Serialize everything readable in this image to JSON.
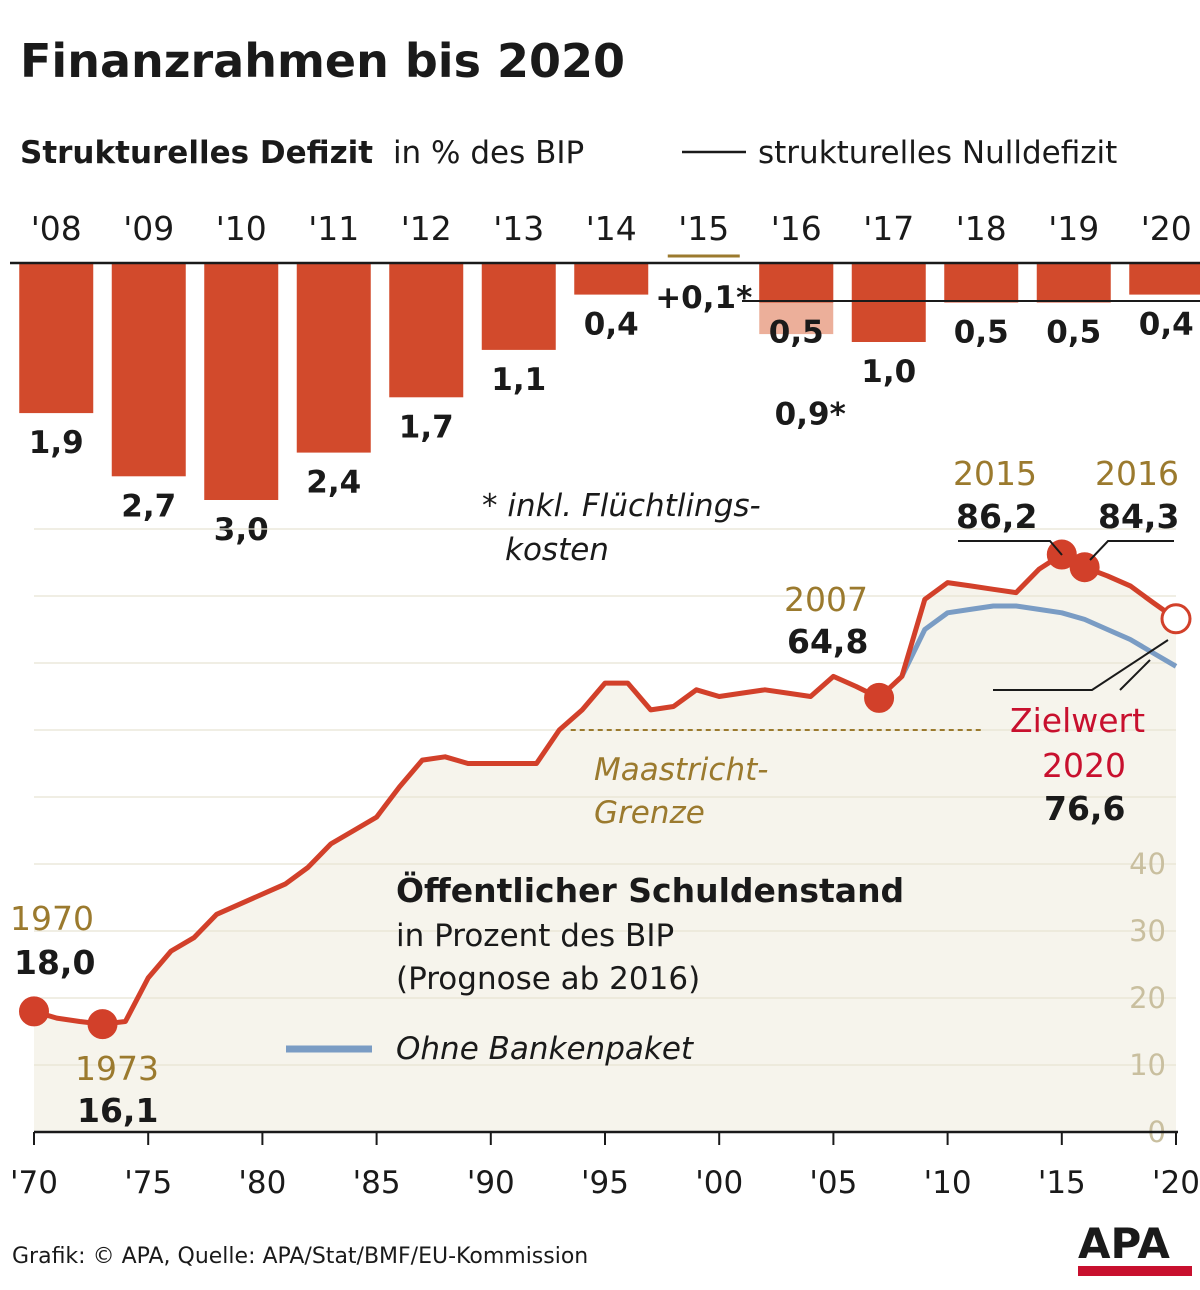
{
  "title": "Finanzrahmen bis 2020",
  "colors": {
    "bar": "#d24a2c",
    "bar_light": "#ecaf9a",
    "debt_line": "#d2402a",
    "no_bank_line": "#7a9cc4",
    "gold": "#9b7a2e",
    "area_fill": "#f6f4ec",
    "red_text": "#c8102e"
  },
  "deficit": {
    "subtitle_bold": "Strukturelles Defizit",
    "subtitle_rest": "in % des BIP",
    "legend_label": "strukturelles Nulldefizit",
    "footnote_line1": "* inkl. Flüchtlings-",
    "footnote_line2": "kosten"
  },
  "debt": {
    "legend_title": "Öffentlicher Schuldenstand",
    "legend_line2": "in Prozent des BIP",
    "legend_line3": "(Prognose ab 2016)",
    "legend_no_bank": "Ohne Bankenpaket",
    "maastricht_line1": "Maastricht-",
    "maastricht_line2": "Grenze",
    "ann_1970_year": "1970",
    "ann_1970_value": "18,0",
    "ann_1973_year": "1973",
    "ann_1973_value": "16,1",
    "ann_2007_year": "2007",
    "ann_2007_value": "64,8",
    "ann_2015_year": "2015",
    "ann_2015_value": "86,2",
    "ann_2016_year": "2016",
    "ann_2016_value": "84,3",
    "ann_2020_label1": "Zielwert",
    "ann_2020_label2": "2020",
    "ann_2020_value": "76,6"
  },
  "source": "Grafik: © APA, Quelle: APA/Stat/BMF/EU-Kommission",
  "logo": "APA",
  "chart_data": [
    {
      "type": "bar",
      "title": "Strukturelles Defizit in % des BIP",
      "categories": [
        "'08",
        "'09",
        "'10",
        "'11",
        "'12",
        "'13",
        "'14",
        "'15",
        "'16",
        "'17",
        "'18",
        "'19",
        "'20"
      ],
      "values": [
        -1.9,
        -2.7,
        -3.0,
        -2.4,
        -1.7,
        -1.1,
        -0.4,
        0.1,
        -0.5,
        -1.0,
        -0.5,
        -0.5,
        -0.4
      ],
      "value_labels": [
        "1,9",
        "2,7",
        "3,0",
        "2,4",
        "1,7",
        "1,1",
        "0,4",
        "+0,1*",
        "0,5",
        "1,0",
        "0,5",
        "0,5",
        "0,4"
      ],
      "extra": {
        "category": "'16",
        "value": -0.9,
        "label": "0,9*",
        "note": "inkl. Flüchtlingskosten"
      },
      "reference_line": {
        "value": 0,
        "label": "strukturelles Nulldefizit"
      },
      "highlighted_category": "'15"
    },
    {
      "type": "line",
      "title": "Öffentlicher Schuldenstand in Prozent des BIP (Prognose ab 2016)",
      "xlim": [
        1970,
        2020
      ],
      "ylim": [
        0,
        90
      ],
      "x_ticks": [
        "'70",
        "'75",
        "'80",
        "'85",
        "'90",
        "'95",
        "'00",
        "'05",
        "'10",
        "'15",
        "'20"
      ],
      "y_ticks": [
        0,
        10,
        20,
        30,
        40
      ],
      "grid": true,
      "reference_line": {
        "value": 60,
        "label": "Maastricht-Grenze"
      },
      "series": [
        {
          "name": "Öffentlicher Schuldenstand",
          "x": [
            1970,
            1971,
            1972,
            1973,
            1974,
            1975,
            1976,
            1977,
            1978,
            1979,
            1980,
            1981,
            1982,
            1983,
            1984,
            1985,
            1986,
            1987,
            1988,
            1989,
            1990,
            1991,
            1992,
            1993,
            1994,
            1995,
            1996,
            1997,
            1998,
            1999,
            2000,
            2001,
            2002,
            2003,
            2004,
            2005,
            2006,
            2007,
            2008,
            2009,
            2010,
            2011,
            2012,
            2013,
            2014,
            2015,
            2016,
            2017,
            2018,
            2019,
            2020
          ],
          "y": [
            18.0,
            17.0,
            16.5,
            16.1,
            16.5,
            23.0,
            27.0,
            29.0,
            32.5,
            34.0,
            35.5,
            37.0,
            39.5,
            43.0,
            45.0,
            47.0,
            51.5,
            55.5,
            56.0,
            55.0,
            55.0,
            55.0,
            55.0,
            60.0,
            63.0,
            67.0,
            67.0,
            63.0,
            63.5,
            66.0,
            65.0,
            65.5,
            66.0,
            65.5,
            65.0,
            68.0,
            66.5,
            64.8,
            68.0,
            79.5,
            82.0,
            81.5,
            81.0,
            80.5,
            84.0,
            86.2,
            84.3,
            83.0,
            81.5,
            79.0,
            76.6
          ]
        },
        {
          "name": "Ohne Bankenpaket",
          "x": [
            2008,
            2009,
            2010,
            2011,
            2012,
            2013,
            2014,
            2015,
            2016,
            2017,
            2018,
            2019,
            2020
          ],
          "y": [
            68.0,
            75.0,
            77.5,
            78.0,
            78.5,
            78.5,
            78.0,
            77.5,
            76.5,
            75.0,
            73.5,
            71.5,
            69.5
          ]
        }
      ],
      "annotations": [
        {
          "x": 1970,
          "y": 18.0,
          "label": "1970",
          "value": "18,0"
        },
        {
          "x": 1973,
          "y": 16.1,
          "label": "1973",
          "value": "16,1"
        },
        {
          "x": 2007,
          "y": 64.8,
          "label": "2007",
          "value": "64,8"
        },
        {
          "x": 2015,
          "y": 86.2,
          "label": "2015",
          "value": "86,2"
        },
        {
          "x": 2016,
          "y": 84.3,
          "label": "2016",
          "value": "84,3"
        },
        {
          "x": 2020,
          "y": 76.6,
          "label": "Zielwert 2020",
          "value": "76,6"
        }
      ]
    }
  ]
}
